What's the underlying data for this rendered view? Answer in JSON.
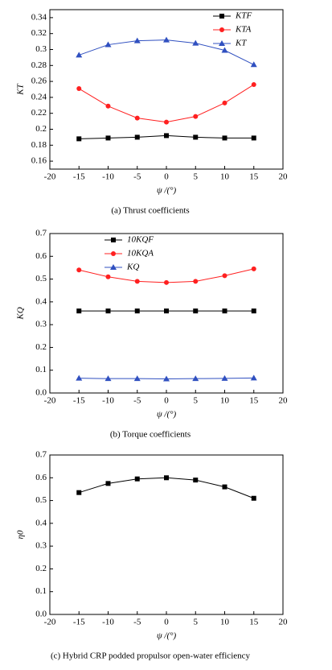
{
  "chart_data": [
    {
      "type": "line",
      "caption": "(a) Thrust coefficients",
      "xlabel": "ψ /(°)",
      "ylabel": "KT",
      "x": [
        -15,
        -10,
        -5,
        0,
        5,
        10,
        15
      ],
      "xlim": [
        -20,
        20
      ],
      "xticks": [
        -20,
        -15,
        -10,
        -5,
        0,
        5,
        10,
        15,
        20
      ],
      "ylim": [
        0.15,
        0.35
      ],
      "yticks": [
        0.16,
        0.18,
        0.2,
        0.22,
        0.24,
        0.26,
        0.28,
        0.3,
        0.32,
        0.34
      ],
      "legend": "upper right",
      "series": [
        {
          "name": "KTF",
          "color": "#000000",
          "marker": "square",
          "values": [
            0.188,
            0.189,
            0.19,
            0.192,
            0.19,
            0.189,
            0.189
          ]
        },
        {
          "name": "KTA",
          "color": "#ff2020",
          "marker": "circle",
          "values": [
            0.251,
            0.229,
            0.214,
            0.209,
            0.216,
            0.233,
            0.256
          ]
        },
        {
          "name": "KT",
          "color": "#3050c0",
          "marker": "triangle",
          "values": [
            0.293,
            0.306,
            0.311,
            0.312,
            0.308,
            0.299,
            0.281
          ]
        }
      ]
    },
    {
      "type": "line",
      "caption": "(b) Torque coefficients",
      "xlabel": "ψ /(°)",
      "ylabel": "KQ",
      "x": [
        -15,
        -10,
        -5,
        0,
        5,
        10,
        15
      ],
      "xlim": [
        -20,
        20
      ],
      "xticks": [
        -20,
        -15,
        -10,
        -5,
        0,
        5,
        10,
        15,
        20
      ],
      "ylim": [
        0,
        0.7
      ],
      "yticks": [
        {
          "value": 0,
          "label": "0.0"
        },
        0.1,
        0.2,
        0.3,
        0.4,
        0.5,
        0.6,
        0.7
      ],
      "legend": "upper left",
      "series": [
        {
          "name": "10KQF",
          "color": "#000000",
          "marker": "square",
          "values": [
            0.36,
            0.36,
            0.36,
            0.36,
            0.36,
            0.36,
            0.36
          ]
        },
        {
          "name": "10KQA",
          "color": "#ff2020",
          "marker": "circle",
          "values": [
            0.54,
            0.51,
            0.49,
            0.485,
            0.49,
            0.515,
            0.545
          ]
        },
        {
          "name": "KQ",
          "color": "#3050c0",
          "marker": "triangle",
          "values": [
            0.065,
            0.063,
            0.063,
            0.062,
            0.063,
            0.064,
            0.066
          ]
        }
      ]
    },
    {
      "type": "line",
      "caption": "(c) Hybrid CRP podded propulsor open-water efficiency",
      "xlabel": "ψ /(°)",
      "ylabel": "η0",
      "x": [
        -15,
        -10,
        -5,
        0,
        5,
        10,
        15
      ],
      "xlim": [
        -20,
        20
      ],
      "xticks": [
        -20,
        -15,
        -10,
        -5,
        0,
        5,
        10,
        15,
        20
      ],
      "ylim": [
        0,
        0.7
      ],
      "yticks": [
        {
          "value": 0,
          "label": "0.0"
        },
        0.1,
        0.2,
        0.3,
        0.4,
        0.5,
        0.6,
        0.7
      ],
      "series": [
        {
          "color": "#000000",
          "marker": "square",
          "values": [
            0.535,
            0.575,
            0.595,
            0.6,
            0.59,
            0.56,
            0.51
          ]
        }
      ]
    }
  ]
}
